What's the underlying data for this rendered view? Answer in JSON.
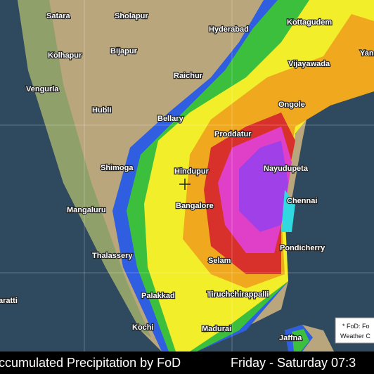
{
  "cities": [
    {
      "label": "Satara"
    },
    {
      "label": "Sholapur"
    },
    {
      "label": "Hyderabad"
    },
    {
      "label": "Kottagudem"
    },
    {
      "label": "Kolhapur"
    },
    {
      "label": "Bijapur"
    },
    {
      "label": "Raichur"
    },
    {
      "label": "Vijayawada"
    },
    {
      "label": "Yan"
    },
    {
      "label": "Vengurla"
    },
    {
      "label": "Hubli"
    },
    {
      "label": "Ongole"
    },
    {
      "label": "Bellary"
    },
    {
      "label": "Proddatur"
    },
    {
      "label": "Shimoga"
    },
    {
      "label": "Hindupur"
    },
    {
      "label": "Nayudupeta"
    },
    {
      "label": "Mangaluru"
    },
    {
      "label": "Bangalore"
    },
    {
      "label": "Chennai"
    },
    {
      "label": "Pondicherry"
    },
    {
      "label": "Thalassery"
    },
    {
      "label": "Selam"
    },
    {
      "label": "Palakkad"
    },
    {
      "label": "Tiruchchirappalli"
    },
    {
      "label": "aratti"
    },
    {
      "label": "Kochi"
    },
    {
      "label": "Madurai"
    },
    {
      "label": "Jaffna"
    }
  ],
  "note": {
    "line1": "* FoD: Fo",
    "line2": "Weather C"
  },
  "caption": {
    "title": "ccumulated Precipitation by FoD",
    "period": "Friday - Saturday 07:3"
  }
}
